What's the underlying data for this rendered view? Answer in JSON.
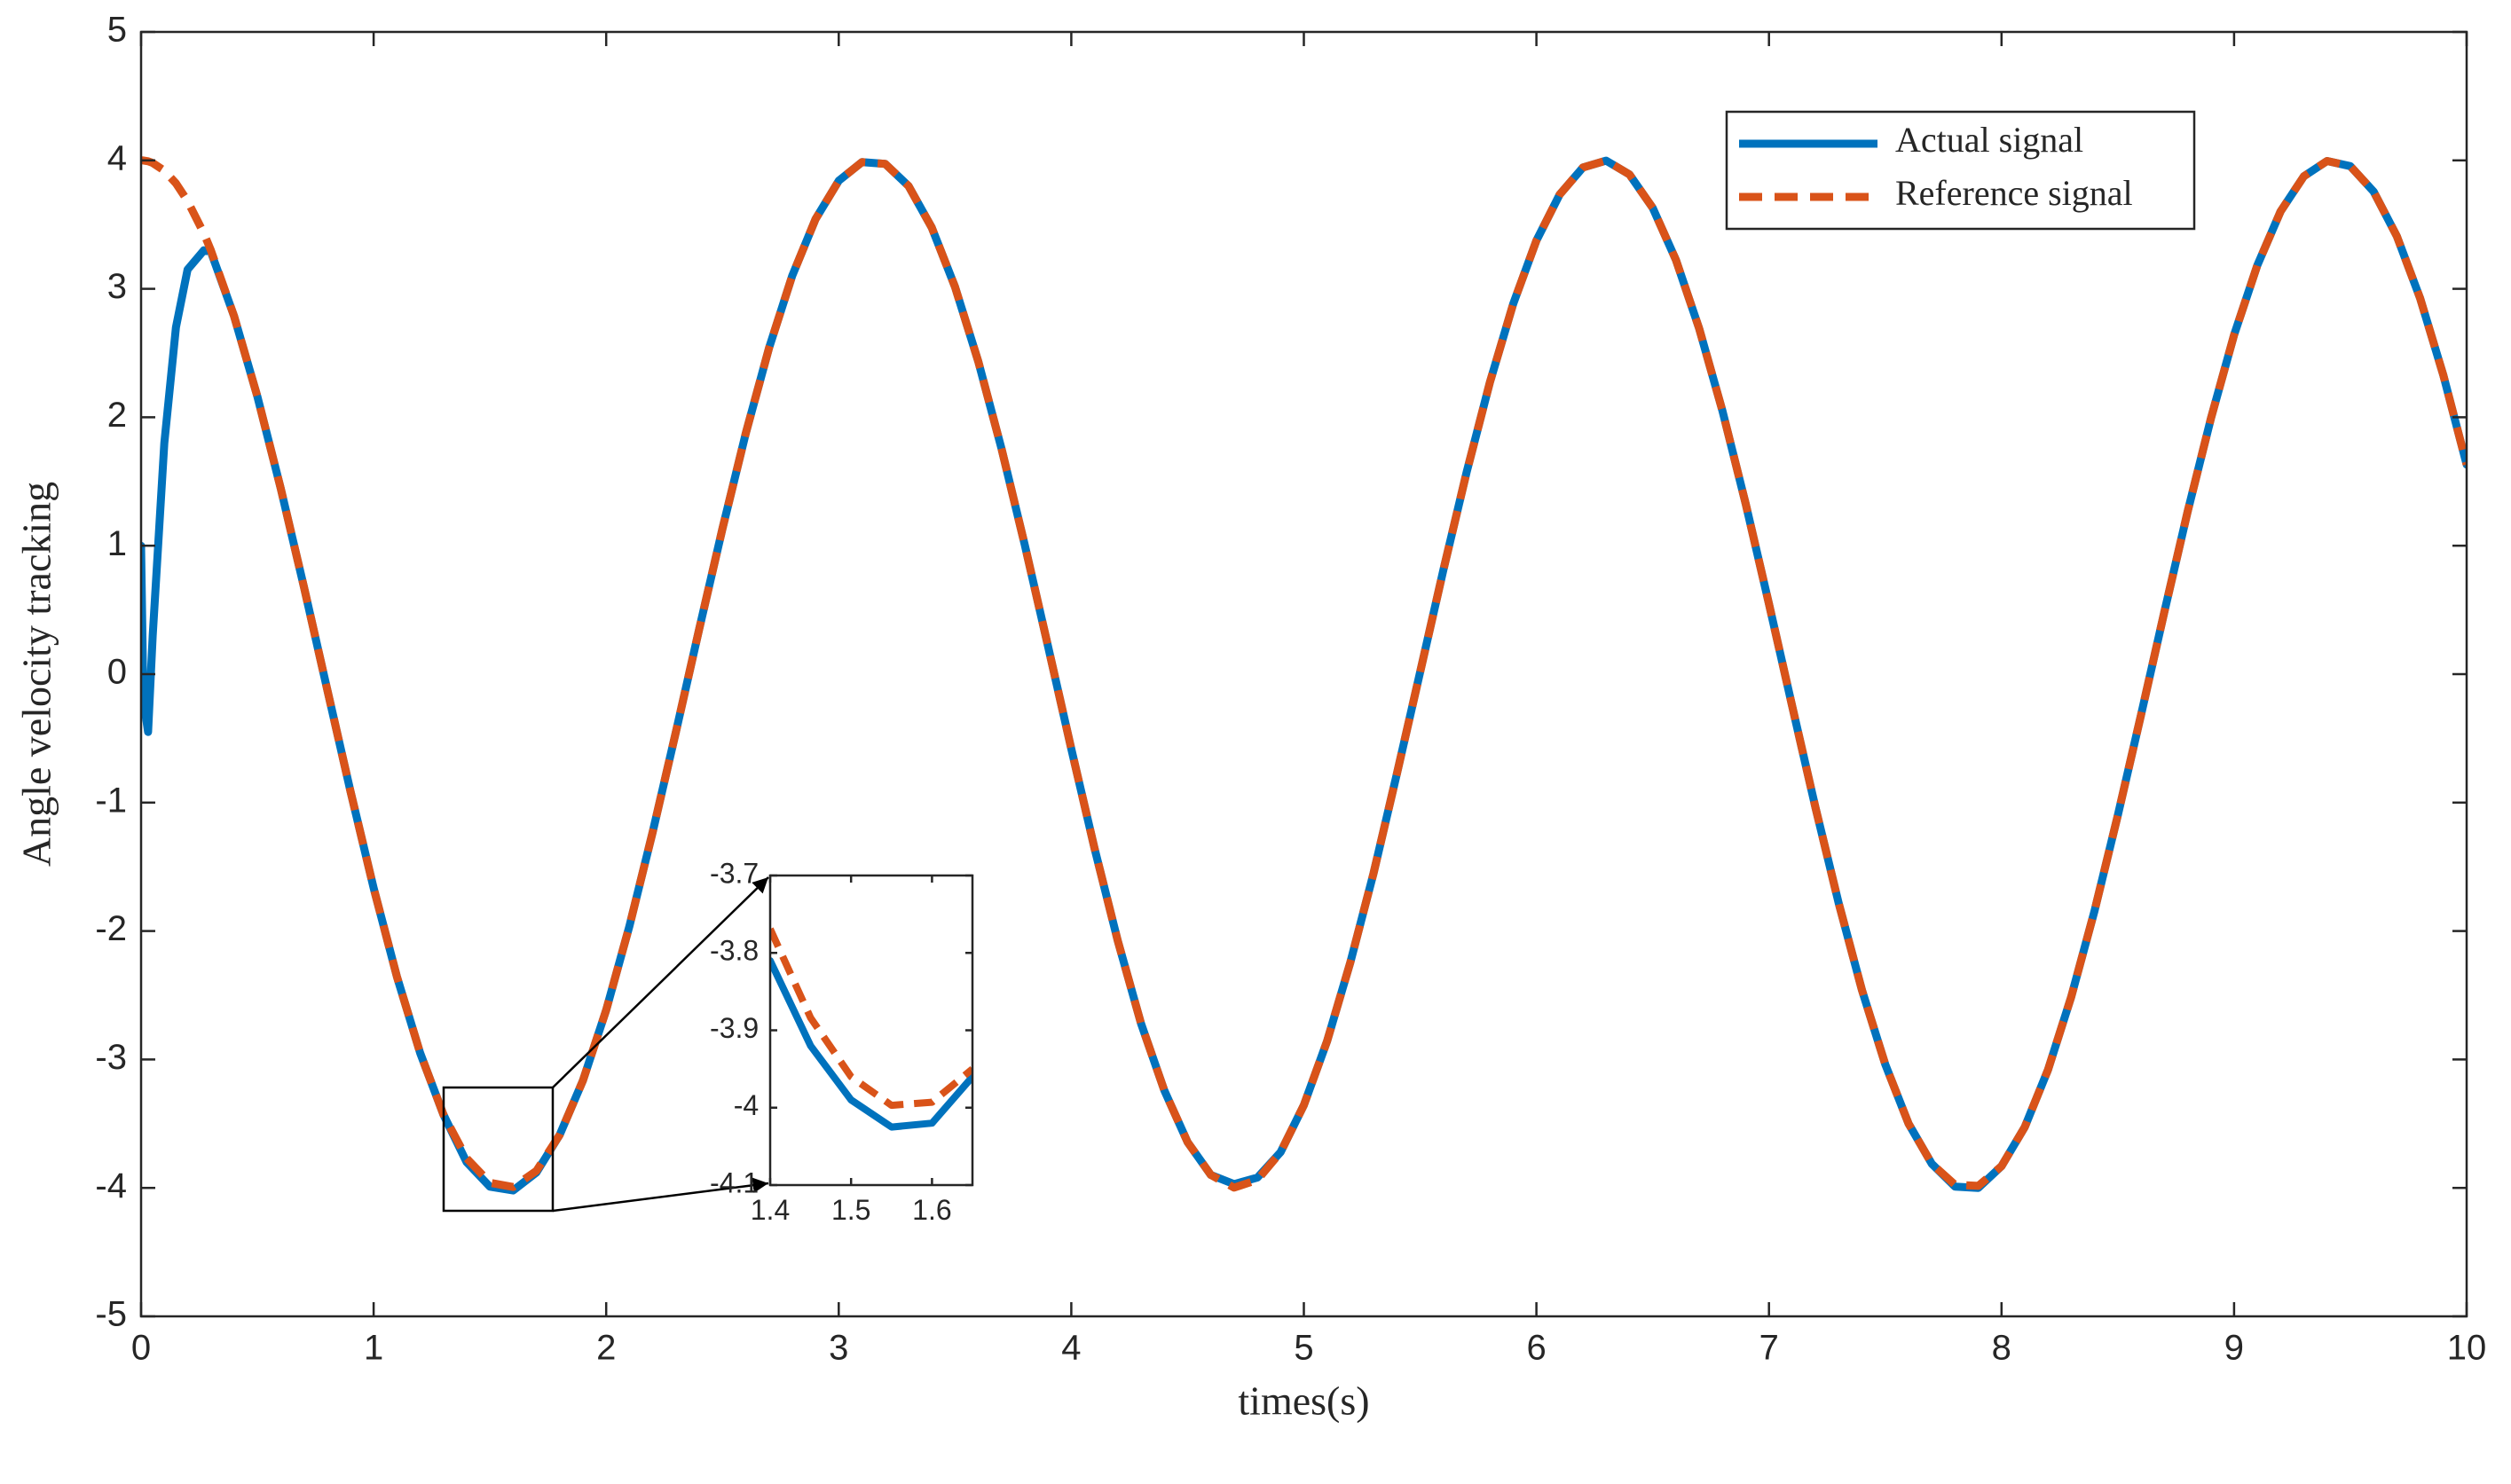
{
  "chart_data": [
    {
      "type": "line",
      "xlabel": "times(s)",
      "ylabel": "Angle velocity tracking",
      "xlim": [
        0,
        10
      ],
      "ylim": [
        -5,
        5
      ],
      "xticks": [
        0,
        1,
        2,
        3,
        4,
        5,
        6,
        7,
        8,
        9,
        10
      ],
      "yticks": [
        -5,
        -4,
        -3,
        -2,
        -1,
        0,
        1,
        2,
        3,
        4,
        5
      ],
      "legend": "northeast",
      "x": [
        0,
        0.01,
        0.03,
        0.05,
        0.1,
        0.15,
        0.2,
        0.27,
        0.3,
        0.4,
        0.5,
        0.6,
        0.7,
        0.8,
        0.9,
        1.0,
        1.1,
        1.2,
        1.3,
        1.4,
        1.5,
        1.6,
        1.7,
        1.8,
        1.9,
        2.0,
        2.1,
        2.2,
        2.3,
        2.4,
        2.5,
        2.6,
        2.7,
        2.8,
        2.9,
        3.0,
        3.1,
        3.2,
        3.3,
        3.4,
        3.5,
        3.6,
        3.7,
        3.8,
        3.9,
        4.0,
        4.1,
        4.2,
        4.3,
        4.4,
        4.5,
        4.6,
        4.7,
        4.8,
        4.9,
        5.0,
        5.1,
        5.2,
        5.3,
        5.4,
        5.5,
        5.6,
        5.7,
        5.8,
        5.9,
        6.0,
        6.1,
        6.2,
        6.3,
        6.4,
        6.5,
        6.6,
        6.7,
        6.8,
        6.9,
        7.0,
        7.1,
        7.2,
        7.3,
        7.4,
        7.5,
        7.6,
        7.7,
        7.8,
        7.9,
        8.0,
        8.1,
        8.2,
        8.3,
        8.4,
        8.5,
        8.6,
        8.7,
        8.8,
        8.9,
        9.0,
        9.1,
        9.2,
        9.3,
        9.4,
        9.5,
        9.6,
        9.7,
        9.8,
        9.9,
        10.0
      ],
      "series": [
        {
          "name": "Actual signal",
          "color": "#0072bd",
          "line_style": "solid",
          "values": [
            1,
            -0.2,
            -0.45,
            0.3,
            1.8,
            2.7,
            3.15,
            3.3,
            3.29,
            2.787,
            2.161,
            1.449,
            0.68,
            -0.117,
            -0.909,
            -1.665,
            -2.354,
            -2.949,
            -3.428,
            -3.8,
            -3.99,
            -4.02,
            -3.88,
            -3.587,
            -3.164,
            -2.615,
            -1.961,
            -1.229,
            -0.449,
            0.35,
            1.135,
            1.874,
            2.539,
            3.102,
            3.542,
            3.841,
            3.986,
            3.973,
            3.801,
            3.477,
            3.016,
            2.434,
            1.754,
            1.005,
            0.216,
            -0.582,
            -1.357,
            -2.077,
            -2.72,
            -3.24,
            -3.644,
            -3.899,
            -3.97,
            -3.92,
            -3.722,
            -3.356,
            -2.857,
            -2.244,
            -1.548,
            -0.777,
            0.018,
            0.813,
            1.574,
            2.273,
            2.882,
            3.376,
            3.734,
            3.945,
            3.998,
            3.891,
            3.63,
            3.224,
            2.689,
            2.049,
            1.325,
            0.547,
            -0.251,
            -1.039,
            -1.784,
            -2.46,
            -3.039,
            -3.499,
            -3.812,
            -3.99,
            -4.0,
            -3.831,
            -3.526,
            -3.08,
            -2.511,
            -1.843,
            -1.101,
            -0.315,
            0.484,
            1.264,
            1.988,
            2.641,
            3.183,
            3.603,
            3.876,
            3.995,
            3.955,
            3.757,
            3.409,
            2.926,
            2.326,
            1.632
          ]
        },
        {
          "name": "Reference signal",
          "color": "#d95319",
          "line_style": "dashed",
          "values": [
            4,
            3.999,
            3.993,
            3.98,
            3.92,
            3.821,
            3.684,
            3.431,
            3.301,
            2.787,
            2.161,
            1.449,
            0.68,
            -0.117,
            -0.909,
            -1.665,
            -2.354,
            -2.949,
            -3.428,
            -3.769,
            -3.96,
            -3.993,
            -3.867,
            -3.587,
            -3.164,
            -2.615,
            -1.961,
            -1.229,
            -0.449,
            0.35,
            1.135,
            1.874,
            2.539,
            3.102,
            3.542,
            3.841,
            3.986,
            3.973,
            3.801,
            3.477,
            3.016,
            2.434,
            1.754,
            1.005,
            0.216,
            -0.582,
            -1.357,
            -2.077,
            -2.72,
            -3.24,
            -3.644,
            -3.899,
            -3.998,
            -3.938,
            -3.722,
            -3.356,
            -2.857,
            -2.244,
            -1.548,
            -0.777,
            0.018,
            0.813,
            1.574,
            2.273,
            2.882,
            3.376,
            3.734,
            3.945,
            3.998,
            3.891,
            3.63,
            3.224,
            2.689,
            2.049,
            1.325,
            0.547,
            -0.251,
            -1.039,
            -1.784,
            -2.46,
            -3.039,
            -3.499,
            -3.812,
            -3.976,
            -3.984,
            -3.831,
            -3.526,
            -3.08,
            -2.511,
            -1.843,
            -1.101,
            -0.315,
            0.484,
            1.264,
            1.988,
            2.641,
            3.183,
            3.603,
            3.876,
            3.995,
            3.955,
            3.757,
            3.409,
            2.926,
            2.326,
            1.632
          ]
        }
      ]
    },
    {
      "type": "line",
      "xlim": [
        1.4,
        1.65
      ],
      "ylim": [
        -4.1,
        -3.7
      ],
      "xticks": [
        1.4,
        1.5,
        1.6
      ],
      "yticks": [
        -4.1,
        -4,
        -3.9,
        -3.8,
        -3.7
      ],
      "x": [
        1.4,
        1.45,
        1.5,
        1.55,
        1.6,
        1.65
      ],
      "series": [
        {
          "name": "Actual signal",
          "color": "#0072bd",
          "line_style": "solid",
          "values": [
            -3.81,
            -3.92,
            -3.99,
            -4.025,
            -4.02,
            -3.96
          ]
        },
        {
          "name": "Reference signal",
          "color": "#d95319",
          "line_style": "dashed",
          "values": [
            -3.769,
            -3.884,
            -3.96,
            -3.997,
            -3.993,
            -3.95
          ]
        }
      ]
    }
  ]
}
